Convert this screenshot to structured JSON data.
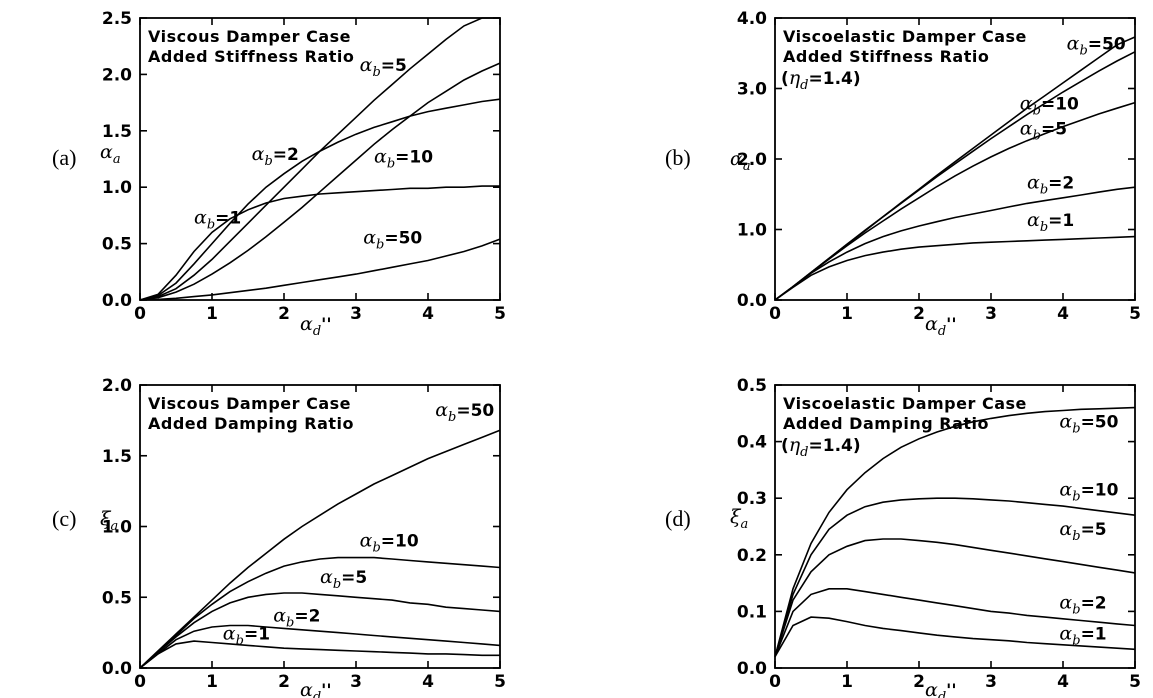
{
  "chart_data": [
    {
      "type": "line",
      "panel_label": "(a)",
      "annotation": [
        "Viscous Damper Case",
        "Added Stiffness Ratio"
      ],
      "xlabel": "αd''",
      "ylabel": "αa",
      "xlim": [
        0,
        5
      ],
      "ylim": [
        0,
        2.5
      ],
      "xticks": [
        "0",
        "1",
        "2",
        "3",
        "4",
        "5"
      ],
      "yticks": [
        "0.0",
        "0.5",
        "1.0",
        "1.5",
        "2.0",
        "2.5"
      ],
      "grid": false,
      "x": [
        0,
        0.25,
        0.5,
        0.75,
        1,
        1.25,
        1.5,
        1.75,
        2,
        2.25,
        2.5,
        2.75,
        3,
        3.25,
        3.5,
        3.75,
        4,
        4.25,
        4.5,
        4.75,
        5
      ],
      "series": [
        {
          "name": "αb=1",
          "values": [
            0,
            0.05,
            0.22,
            0.43,
            0.6,
            0.72,
            0.8,
            0.86,
            0.9,
            0.92,
            0.94,
            0.95,
            0.96,
            0.97,
            0.98,
            0.99,
            0.99,
            1.0,
            1.0,
            1.01,
            1.01
          ]
        },
        {
          "name": "αb=2",
          "values": [
            0,
            0.04,
            0.15,
            0.32,
            0.5,
            0.68,
            0.85,
            1.0,
            1.12,
            1.23,
            1.32,
            1.4,
            1.47,
            1.53,
            1.58,
            1.63,
            1.67,
            1.7,
            1.73,
            1.76,
            1.78
          ]
        },
        {
          "name": "αb=5",
          "values": [
            0,
            0.03,
            0.1,
            0.22,
            0.36,
            0.52,
            0.68,
            0.84,
            1.0,
            1.16,
            1.32,
            1.47,
            1.62,
            1.77,
            1.91,
            2.05,
            2.18,
            2.31,
            2.43,
            2.55,
            2.66
          ]
        },
        {
          "name": "αb=10",
          "values": [
            0,
            0.02,
            0.07,
            0.14,
            0.23,
            0.33,
            0.44,
            0.56,
            0.69,
            0.82,
            0.96,
            1.1,
            1.24,
            1.38,
            1.51,
            1.63,
            1.75,
            1.85,
            1.95,
            2.03,
            2.1
          ]
        },
        {
          "name": "αb=50",
          "values": [
            0,
            0.005,
            0.015,
            0.03,
            0.045,
            0.065,
            0.085,
            0.105,
            0.13,
            0.155,
            0.18,
            0.205,
            0.23,
            0.26,
            0.29,
            0.32,
            0.35,
            0.39,
            0.43,
            0.48,
            0.54
          ]
        }
      ],
      "curve_labels": [
        {
          "text": "αb=1",
          "x": 0.75,
          "y": 0.68
        },
        {
          "text": "αb=2",
          "x": 1.55,
          "y": 1.24
        },
        {
          "text": "αb=5",
          "x": 3.05,
          "y": 2.03
        },
        {
          "text": "αb=10",
          "x": 3.25,
          "y": 1.22
        },
        {
          "text": "αb=50",
          "x": 3.1,
          "y": 0.5
        }
      ]
    },
    {
      "type": "line",
      "panel_label": "(b)",
      "annotation": [
        "Viscoelastic Damper Case",
        "Added Stiffness Ratio"
      ],
      "eta_label": "(ηd=1.4)",
      "xlabel": "αd''",
      "ylabel": "αa",
      "xlim": [
        0,
        5
      ],
      "ylim": [
        0,
        4.0
      ],
      "xticks": [
        "0",
        "1",
        "2",
        "3",
        "4",
        "5"
      ],
      "yticks": [
        "0.0",
        "1.0",
        "2.0",
        "3.0",
        "4.0"
      ],
      "grid": false,
      "x": [
        0,
        0.25,
        0.5,
        0.75,
        1,
        1.25,
        1.5,
        1.75,
        2,
        2.25,
        2.5,
        2.75,
        3,
        3.25,
        3.5,
        3.75,
        4,
        4.25,
        4.5,
        4.75,
        5
      ],
      "series": [
        {
          "name": "αb=1",
          "values": [
            0,
            0.18,
            0.35,
            0.47,
            0.56,
            0.63,
            0.68,
            0.72,
            0.75,
            0.77,
            0.79,
            0.81,
            0.82,
            0.83,
            0.84,
            0.85,
            0.86,
            0.87,
            0.88,
            0.89,
            0.9
          ]
        },
        {
          "name": "αb=2",
          "values": [
            0,
            0.19,
            0.38,
            0.54,
            0.68,
            0.8,
            0.9,
            0.98,
            1.05,
            1.11,
            1.17,
            1.22,
            1.27,
            1.32,
            1.37,
            1.41,
            1.45,
            1.49,
            1.53,
            1.57,
            1.6
          ]
        },
        {
          "name": "αb=5",
          "values": [
            0,
            0.19,
            0.39,
            0.58,
            0.77,
            0.95,
            1.12,
            1.29,
            1.45,
            1.61,
            1.76,
            1.9,
            2.03,
            2.15,
            2.26,
            2.36,
            2.46,
            2.55,
            2.64,
            2.72,
            2.8
          ]
        },
        {
          "name": "αb=10",
          "values": [
            0,
            0.19,
            0.39,
            0.59,
            0.79,
            0.98,
            1.18,
            1.37,
            1.56,
            1.75,
            1.93,
            2.11,
            2.29,
            2.46,
            2.63,
            2.79,
            2.95,
            3.1,
            3.25,
            3.39,
            3.52
          ]
        },
        {
          "name": "αb=50",
          "values": [
            0,
            0.19,
            0.39,
            0.59,
            0.79,
            0.99,
            1.18,
            1.38,
            1.57,
            1.77,
            1.96,
            2.15,
            2.34,
            2.53,
            2.72,
            2.9,
            3.08,
            3.26,
            3.44,
            3.62,
            3.73
          ]
        }
      ],
      "curve_labels": [
        {
          "text": "αb=50",
          "x": 4.05,
          "y": 3.55
        },
        {
          "text": "αb=10",
          "x": 3.4,
          "y": 2.7
        },
        {
          "text": "αb=5",
          "x": 3.4,
          "y": 2.35
        },
        {
          "text": "αb=2",
          "x": 3.5,
          "y": 1.58
        },
        {
          "text": "αb=1",
          "x": 3.5,
          "y": 1.05
        }
      ]
    },
    {
      "type": "line",
      "panel_label": "(c)",
      "annotation": [
        "Viscous Damper Case",
        "Added Damping Ratio"
      ],
      "xlabel": "αd''",
      "ylabel": "ξa",
      "xlim": [
        0,
        5
      ],
      "ylim": [
        0,
        2.0
      ],
      "xticks": [
        "0",
        "1",
        "2",
        "3",
        "4",
        "5"
      ],
      "yticks": [
        "0.0",
        "0.5",
        "1.0",
        "1.5",
        "2.0"
      ],
      "grid": false,
      "x": [
        0,
        0.25,
        0.5,
        0.75,
        1,
        1.25,
        1.5,
        1.75,
        2,
        2.25,
        2.5,
        2.75,
        3,
        3.25,
        3.5,
        3.75,
        4,
        4.25,
        4.5,
        4.75,
        5
      ],
      "series": [
        {
          "name": "αb=1",
          "values": [
            0,
            0.1,
            0.17,
            0.19,
            0.18,
            0.17,
            0.16,
            0.15,
            0.14,
            0.135,
            0.13,
            0.125,
            0.12,
            0.115,
            0.11,
            0.105,
            0.1,
            0.1,
            0.095,
            0.09,
            0.09
          ]
        },
        {
          "name": "αb=2",
          "values": [
            0,
            0.1,
            0.2,
            0.26,
            0.29,
            0.3,
            0.3,
            0.29,
            0.28,
            0.27,
            0.26,
            0.25,
            0.24,
            0.23,
            0.22,
            0.21,
            0.2,
            0.19,
            0.18,
            0.17,
            0.16
          ]
        },
        {
          "name": "αb=5",
          "values": [
            0,
            0.11,
            0.22,
            0.32,
            0.4,
            0.46,
            0.5,
            0.52,
            0.53,
            0.53,
            0.52,
            0.51,
            0.5,
            0.49,
            0.48,
            0.46,
            0.45,
            0.43,
            0.42,
            0.41,
            0.4
          ]
        },
        {
          "name": "αb=10",
          "values": [
            0,
            0.11,
            0.23,
            0.35,
            0.45,
            0.54,
            0.61,
            0.67,
            0.72,
            0.75,
            0.77,
            0.78,
            0.78,
            0.78,
            0.77,
            0.76,
            0.75,
            0.74,
            0.73,
            0.72,
            0.71
          ]
        },
        {
          "name": "αb=50",
          "values": [
            0,
            0.12,
            0.24,
            0.36,
            0.48,
            0.6,
            0.71,
            0.81,
            0.91,
            1.0,
            1.08,
            1.16,
            1.23,
            1.3,
            1.36,
            1.42,
            1.48,
            1.53,
            1.58,
            1.63,
            1.68
          ]
        }
      ],
      "curve_labels": [
        {
          "text": "αb=50",
          "x": 4.1,
          "y": 1.78
        },
        {
          "text": "αb=10",
          "x": 3.05,
          "y": 0.86
        },
        {
          "text": "αb=5",
          "x": 2.5,
          "y": 0.6
        },
        {
          "text": "αb=2",
          "x": 1.85,
          "y": 0.33
        },
        {
          "text": "αb=1",
          "x": 1.15,
          "y": 0.2
        }
      ]
    },
    {
      "type": "line",
      "panel_label": "(d)",
      "annotation": [
        "Viscoelastic Damper Case",
        "Added Damping Ratio"
      ],
      "eta_label": "(ηd=1.4)",
      "xlabel": "αd''",
      "ylabel": "ξa",
      "xlim": [
        0,
        5
      ],
      "ylim": [
        0,
        0.5
      ],
      "xticks": [
        "0",
        "1",
        "2",
        "3",
        "4",
        "5"
      ],
      "yticks": [
        "0.0",
        "0.1",
        "0.2",
        "0.3",
        "0.4",
        "0.5"
      ],
      "grid": false,
      "x": [
        0,
        0.25,
        0.5,
        0.75,
        1,
        1.25,
        1.5,
        1.75,
        2,
        2.25,
        2.5,
        2.75,
        3,
        3.25,
        3.5,
        3.75,
        4,
        4.25,
        4.5,
        4.75,
        5
      ],
      "series": [
        {
          "name": "αb=1",
          "values": [
            0.02,
            0.075,
            0.09,
            0.088,
            0.082,
            0.075,
            0.07,
            0.066,
            0.062,
            0.058,
            0.055,
            0.052,
            0.05,
            0.048,
            0.045,
            0.043,
            0.041,
            0.039,
            0.037,
            0.035,
            0.033
          ]
        },
        {
          "name": "αb=2",
          "values": [
            0.02,
            0.1,
            0.13,
            0.14,
            0.14,
            0.135,
            0.13,
            0.125,
            0.12,
            0.115,
            0.11,
            0.105,
            0.1,
            0.097,
            0.093,
            0.09,
            0.087,
            0.084,
            0.081,
            0.078,
            0.075
          ]
        },
        {
          "name": "αb=5",
          "values": [
            0.02,
            0.12,
            0.17,
            0.2,
            0.215,
            0.225,
            0.228,
            0.228,
            0.225,
            0.222,
            0.218,
            0.213,
            0.208,
            0.203,
            0.198,
            0.193,
            0.188,
            0.183,
            0.178,
            0.173,
            0.168
          ]
        },
        {
          "name": "αb=10",
          "values": [
            0.02,
            0.13,
            0.2,
            0.245,
            0.27,
            0.285,
            0.293,
            0.297,
            0.299,
            0.3,
            0.3,
            0.299,
            0.297,
            0.295,
            0.292,
            0.289,
            0.286,
            0.282,
            0.278,
            0.274,
            0.27
          ]
        },
        {
          "name": "αb=50",
          "values": [
            0.02,
            0.14,
            0.22,
            0.275,
            0.315,
            0.345,
            0.37,
            0.39,
            0.405,
            0.417,
            0.427,
            0.435,
            0.441,
            0.446,
            0.45,
            0.453,
            0.455,
            0.457,
            0.458,
            0.459,
            0.46
          ]
        }
      ],
      "curve_labels": [
        {
          "text": "αb=50",
          "x": 3.95,
          "y": 0.425
        },
        {
          "text": "αb=10",
          "x": 3.95,
          "y": 0.305
        },
        {
          "text": "αb=5",
          "x": 3.95,
          "y": 0.235
        },
        {
          "text": "αb=2",
          "x": 3.95,
          "y": 0.105
        },
        {
          "text": "αb=1",
          "x": 3.95,
          "y": 0.05
        }
      ]
    }
  ]
}
